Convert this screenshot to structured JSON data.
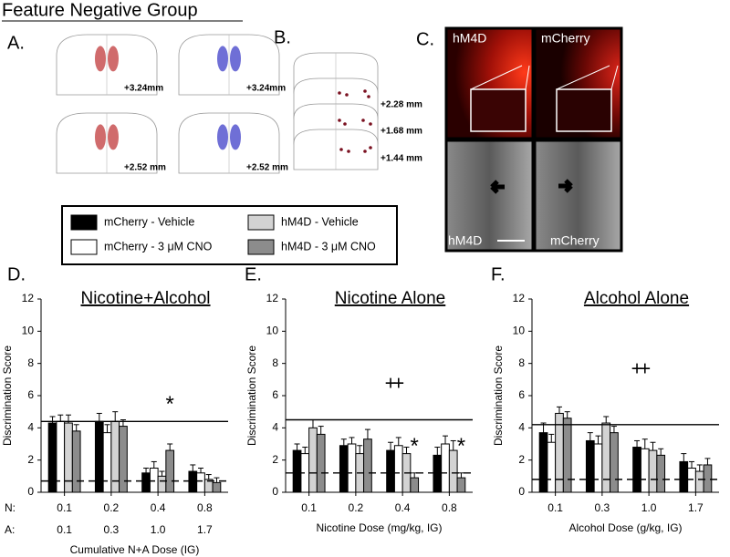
{
  "title": "Feature Negative Group",
  "panel_labels": [
    "A.",
    "B.",
    "C.",
    "D.",
    "E.",
    "F."
  ],
  "panel_a": {
    "labels": [
      "+3.24mm",
      "+3.24mm",
      "+2.52 mm",
      "+2.52 mm"
    ]
  },
  "panel_b": {
    "labels": [
      "+2.28 mm",
      "+1.68 mm",
      "+1.44 mm"
    ]
  },
  "panel_c": {
    "labels": [
      "hM4D",
      "mCherry",
      "hM4D",
      "mCherry"
    ]
  },
  "legend": [
    {
      "name": "mCherry - Vehicle",
      "color": "#000000"
    },
    {
      "name": "mCherry - 3 μM CNO",
      "color": "#ffffff"
    },
    {
      "name": "hM4D - Vehicle",
      "color": "#d3d3d3"
    },
    {
      "name": "hM4D - 3 μM CNO",
      "color": "#8c8c8c"
    }
  ],
  "chart_data": [
    {
      "type": "bar",
      "title": "Nicotine+Alcohol",
      "y_label": "Discrimination Score",
      "x_label": "Cumulative N+A Dose (IG)",
      "row_labels": [
        "N:",
        "A:"
      ],
      "categories": [
        "0.1",
        "0.2",
        "0.4",
        "0.8"
      ],
      "categories_2": [
        "0.1",
        "0.3",
        "1.0",
        "1.7"
      ],
      "ylim": [
        0,
        12
      ],
      "yticks": [
        0,
        2,
        4,
        6,
        8,
        10,
        12
      ],
      "series": [
        {
          "values": [
            4.3,
            4.4,
            1.2,
            1.3
          ],
          "errors": [
            0.4,
            0.5,
            0.3,
            0.4
          ]
        },
        {
          "values": [
            4.4,
            3.7,
            1.5,
            1.2
          ],
          "errors": [
            0.4,
            0.5,
            0.4,
            0.3
          ]
        },
        {
          "values": [
            4.3,
            4.4,
            1.0,
            0.8
          ],
          "errors": [
            0.5,
            0.6,
            0.3,
            0.3
          ]
        },
        {
          "values": [
            3.8,
            4.1,
            2.6,
            0.6
          ],
          "errors": [
            0.4,
            0.4,
            0.4,
            0.3
          ]
        }
      ],
      "hlines": [
        {
          "value": 4.4,
          "style": "solid"
        },
        {
          "value": 0.7,
          "style": "dashed"
        }
      ],
      "annotations": [
        {
          "text": "*",
          "y": 5.4
        }
      ]
    },
    {
      "type": "bar",
      "title": "Nicotine Alone",
      "y_label": "Discrimination Score",
      "x_label": "Nicotine Dose (mg/kg, IG)",
      "categories": [
        "0.1",
        "0.2",
        "0.4",
        "0.8"
      ],
      "ylim": [
        0,
        12
      ],
      "yticks": [
        0,
        2,
        4,
        6,
        8,
        10,
        12
      ],
      "series": [
        {
          "values": [
            2.6,
            2.9,
            2.6,
            2.3
          ],
          "errors": [
            0.4,
            0.4,
            0.5,
            0.5
          ]
        },
        {
          "values": [
            2.4,
            3.0,
            2.9,
            3.0
          ],
          "errors": [
            0.4,
            0.4,
            0.5,
            0.5
          ]
        },
        {
          "values": [
            4.0,
            2.4,
            2.4,
            2.6
          ],
          "errors": [
            0.5,
            0.5,
            0.4,
            0.6
          ]
        },
        {
          "values": [
            3.6,
            3.3,
            0.9,
            0.9
          ],
          "errors": [
            0.5,
            0.6,
            0.3,
            0.3
          ]
        }
      ],
      "hlines": [
        {
          "value": 4.5,
          "style": "solid"
        },
        {
          "value": 1.2,
          "style": "dashed"
        }
      ],
      "annotations": [
        {
          "text": "+",
          "y": 6.7
        },
        {
          "text": "+",
          "y": 6.7
        },
        {
          "text": "*",
          "y": 2.8
        },
        {
          "text": "*",
          "y": 2.8
        }
      ]
    },
    {
      "type": "bar",
      "title": "Alcohol Alone",
      "y_label": "Discrimination Score",
      "x_label": "Alcohol Dose (g/kg, IG)",
      "categories": [
        "0.1",
        "0.3",
        "1.0",
        "1.7"
      ],
      "ylim": [
        0,
        12
      ],
      "yticks": [
        0,
        2,
        4,
        6,
        8,
        10,
        12
      ],
      "series": [
        {
          "values": [
            3.7,
            3.2,
            2.8,
            1.9
          ],
          "errors": [
            0.6,
            0.5,
            0.4,
            0.5
          ]
        },
        {
          "values": [
            3.1,
            3.0,
            2.7,
            1.5
          ],
          "errors": [
            0.5,
            0.5,
            0.6,
            0.4
          ]
        },
        {
          "values": [
            4.9,
            4.3,
            2.6,
            1.3
          ],
          "errors": [
            0.4,
            0.4,
            0.5,
            0.4
          ]
        },
        {
          "values": [
            4.6,
            3.7,
            2.3,
            1.7
          ],
          "errors": [
            0.4,
            0.4,
            0.4,
            0.4
          ]
        }
      ],
      "hlines": [
        {
          "value": 4.2,
          "style": "solid"
        },
        {
          "value": 0.8,
          "style": "dashed"
        }
      ],
      "annotations": [
        {
          "text": "+",
          "y": 7.6
        },
        {
          "text": "+",
          "y": 7.6
        }
      ]
    }
  ]
}
